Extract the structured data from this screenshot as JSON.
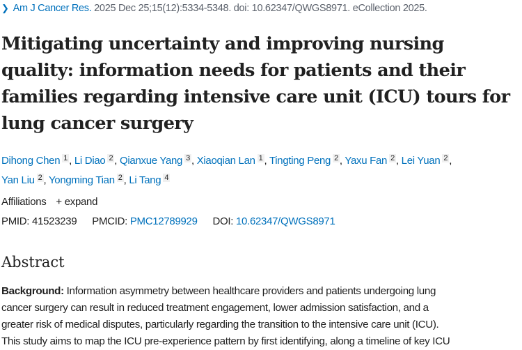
{
  "citation": {
    "journal": "Am J Cancer Res.",
    "details": "2025 Dec 25;15(12):5334-5348. doi: 10.62347/QWGS8971. eCollection 2025."
  },
  "title_lines": [
    "Mitigating uncertainty and improving nursing",
    "quality: information needs for patients and their",
    "families regarding intensive care unit (ICU) tours for",
    "lung cancer surgery"
  ],
  "authors": [
    {
      "name": "Dihong Chen",
      "aff": "1"
    },
    {
      "name": "Li Diao",
      "aff": "2"
    },
    {
      "name": "Qianxue Yang",
      "aff": "3"
    },
    {
      "name": "Xiaoqian Lan",
      "aff": "1"
    },
    {
      "name": "Tingting Peng",
      "aff": "2"
    },
    {
      "name": "Yaxu Fan",
      "aff": "2"
    },
    {
      "name": "Lei Yuan",
      "aff": "2"
    },
    {
      "name": "Yan Liu",
      "aff": "2"
    },
    {
      "name": "Yongming Tian",
      "aff": "2"
    },
    {
      "name": "Li Tang",
      "aff": "4"
    }
  ],
  "affiliations": {
    "label": "Affiliations",
    "expand": "+ expand"
  },
  "ids": {
    "pmid_label": "PMID:",
    "pmid": "41523239",
    "pmcid_label": "PMCID:",
    "pmcid": "PMC12789929",
    "doi_label": "DOI:",
    "doi": "10.62347/QWGS8971"
  },
  "abstract": {
    "heading": "Abstract",
    "background_label": "Background:",
    "lines": [
      " Information asymmetry between healthcare providers and patients undergoing lung",
      "cancer surgery can result in reduced treatment engagement, lower admission satisfaction, and a",
      "greater risk of medical disputes, particularly regarding the transition to the intensive care unit (ICU).",
      "This study aims to map the ICU pre-experience pattern by first identifying, along a timeline of key ICU"
    ]
  }
}
